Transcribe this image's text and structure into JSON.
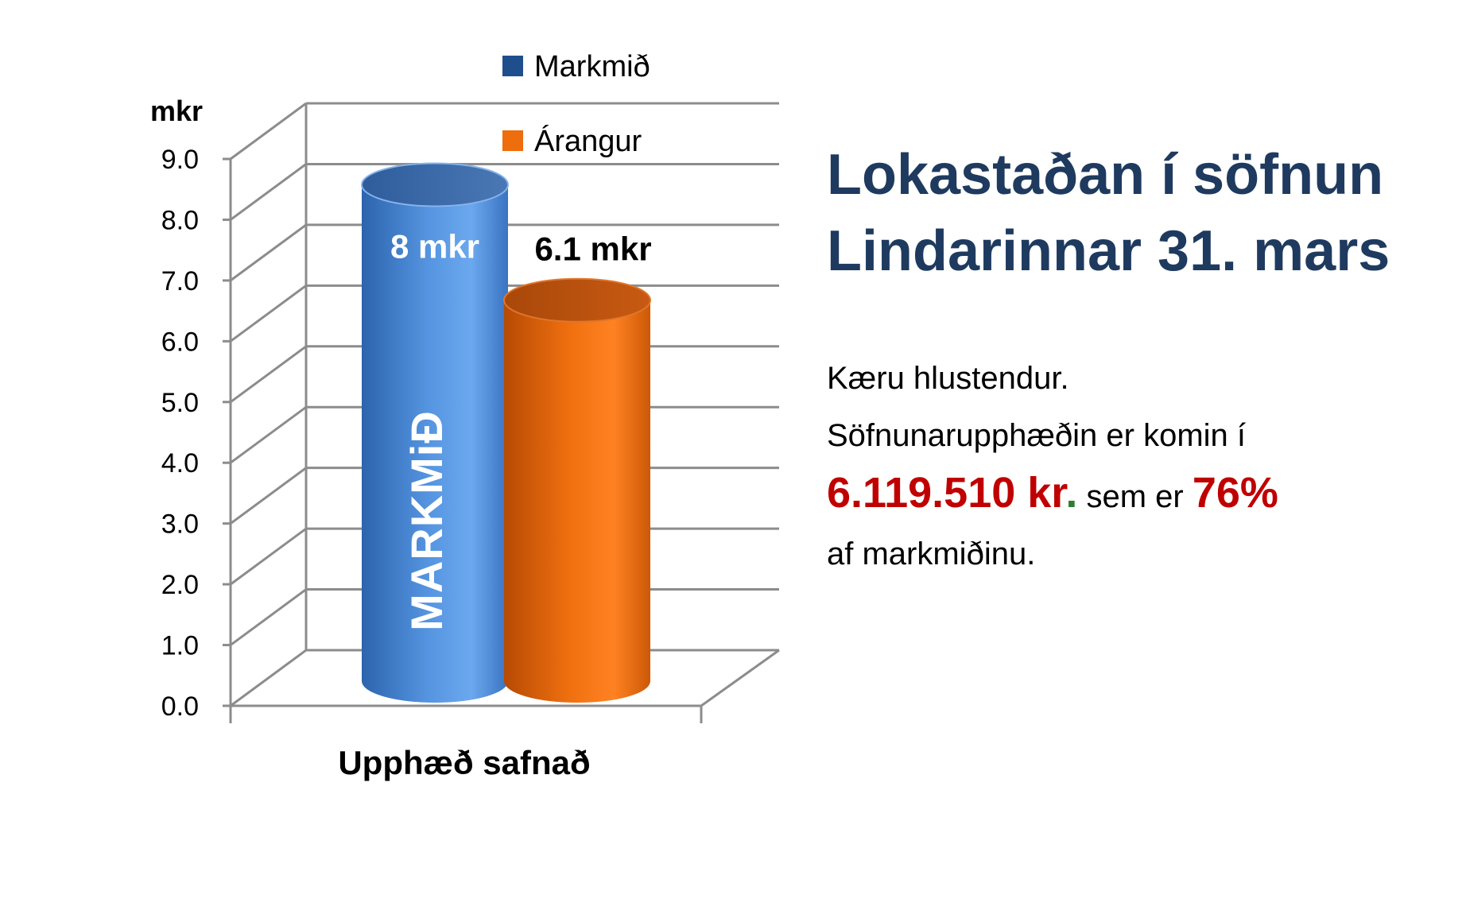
{
  "chart_data": {
    "type": "bar",
    "style": "3d-cylinder",
    "categories": [
      "Upphæð safnað"
    ],
    "series": [
      {
        "name": "Markmið",
        "values": [
          8
        ],
        "data_label": "8 mkr",
        "inner_label": "MARKMiÐ",
        "color": "#4a86d4"
      },
      {
        "name": "Árangur",
        "values": [
          6.1
        ],
        "data_label": "6.1 mkr",
        "inner_label": "",
        "color": "#ee6d0c"
      }
    ],
    "ylabel": "mkr",
    "ylim": [
      0,
      9
    ],
    "yticks": [
      "0.0",
      "1.0",
      "2.0",
      "3.0",
      "4.0",
      "5.0",
      "6.0",
      "7.0",
      "8.0",
      "9.0"
    ],
    "grid": true,
    "legend_position": "top"
  },
  "panel": {
    "title_lines": [
      "Lokastaðan í söfnun",
      "Lindarinnar 31. mars"
    ],
    "line1": "Kæru hlustendur.",
    "line2": "Söfnunarupphæðin er komin í",
    "amount": "6.119.510 kr",
    "amount_dot": ".",
    "mid_text": "sem er",
    "percent": "76%",
    "line4": "af markmiðinu."
  },
  "colors": {
    "title": "#1f3a5f",
    "highlight": "#c00000",
    "grid": "#8c8c8c"
  }
}
